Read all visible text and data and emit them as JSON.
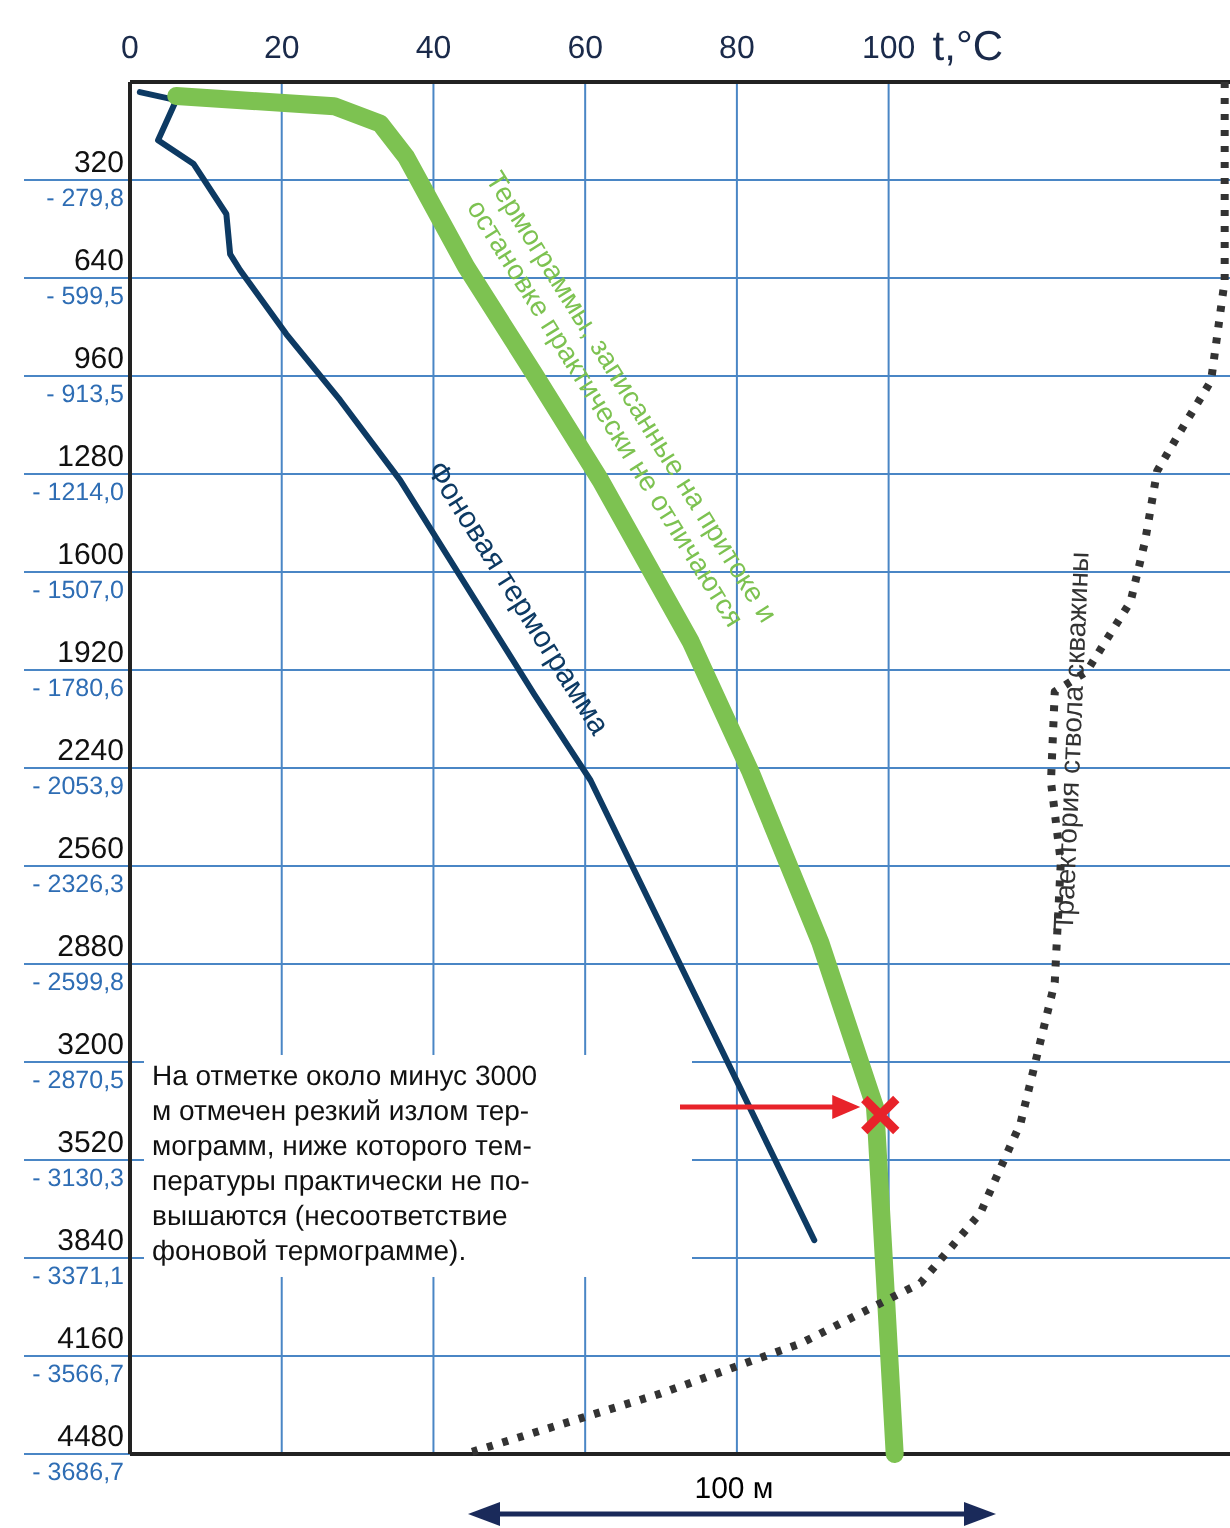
{
  "chart_data": {
    "type": "line",
    "xlabel": "t,°C",
    "xlim": [
      0,
      145
    ],
    "xticks": [
      0,
      20,
      40,
      60,
      80,
      100
    ],
    "ylim": [
      4480,
      0
    ],
    "yticks": [
      320,
      640,
      960,
      1280,
      1600,
      1920,
      2240,
      2560,
      2880,
      3200,
      3520,
      3840,
      4160,
      4480
    ],
    "grid": true,
    "legend": false,
    "marker": "none",
    "series": [
      {
        "name": "Фоновая термограмма",
        "color": "#0d3a63",
        "line_style": "solid",
        "x": [
          1.3,
          6.1,
          3.7,
          8.4,
          12.7,
          13.2,
          14.5,
          20.6,
          27.7,
          35.6,
          53.3,
          60.7,
          90.2
        ],
        "values": [
          33,
          59,
          190,
          268,
          431,
          562,
          614,
          823,
          1039,
          1300,
          2000,
          2280,
          3782
        ]
      },
      {
        "name": "Термограммы, записанные на притоке и остановке практически не отличаются",
        "color": "#7dc251",
        "line_style": "solid",
        "x": [
          6.1,
          26.9,
          33,
          36.4,
          44.3,
          53.3,
          62,
          73.9,
          81.8,
          91,
          98.2,
          98.4,
          99.5,
          100.8
        ],
        "values": [
          46,
          79,
          136,
          245,
          603,
          954,
          1300,
          1827,
          2253,
          2810,
          3347,
          3419,
          3903,
          4480
        ]
      },
      {
        "name": "Траектория ствола скважины",
        "color": "#333333",
        "line_style": "dotted",
        "x": [
          144.3,
          144.3,
          142.5,
          138.5,
          135.4,
          133.8,
          131.9,
          126.1,
          121.9,
          121.4,
          122.7,
          121.9,
          117.4,
          112.1,
          104.2,
          88.4,
          69.9,
          45.1
        ],
        "values": [
          0,
          648,
          976,
          1139,
          1270,
          1500,
          1696,
          1925,
          1991,
          2285,
          2547,
          2940,
          3399,
          3693,
          3922,
          4119,
          4283,
          4473
        ]
      },
      {
        "type": "scatter",
        "marker": "cross",
        "color": "#e8232a",
        "x": [
          98.9
        ],
        "values": [
          3373
        ]
      }
    ],
    "annotations": [
      "- 279,8",
      "- 599,5",
      "- 913,5",
      "- 1214,0",
      "- 1507,0",
      "- 1780,6",
      "- 2053,9",
      "- 2326,3",
      "- 2599,8",
      "- 2870,5",
      "- 3130,3",
      "- 3371,1",
      "- 3566,7",
      "- 3686,7",
      "На отметке около минус 3000\nм отмечен резкий излом тер-\nмограмм, ниже которого тем-\nпературы практически не по-\nвышаются (несоответствие\nфоновой термограмме).",
      "100 м"
    ]
  }
}
